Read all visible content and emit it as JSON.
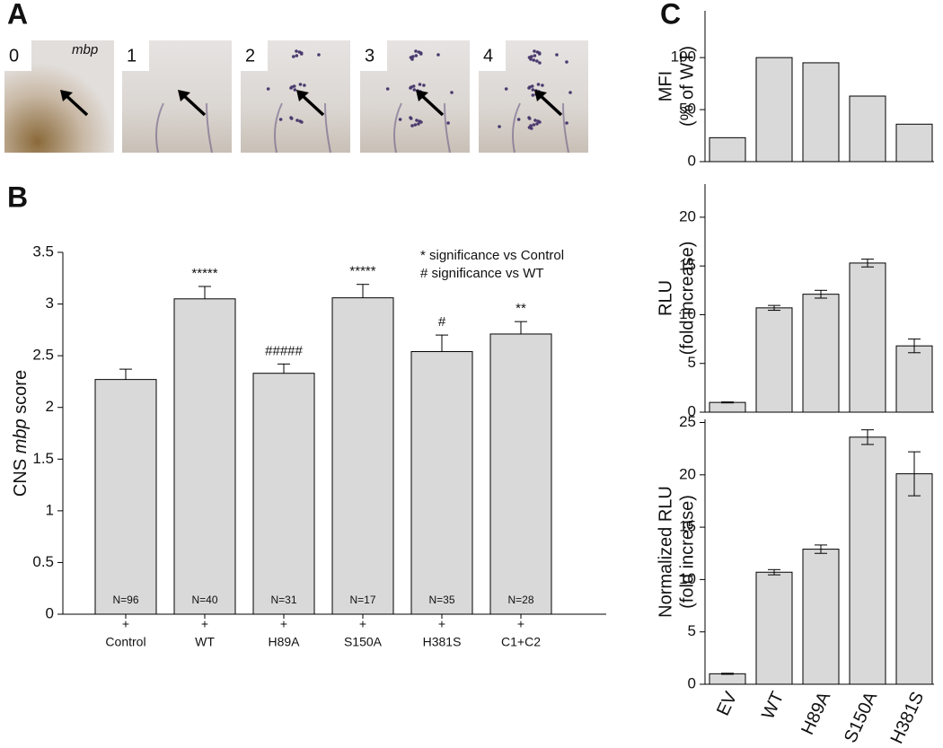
{
  "panel_a": {
    "panel_label": "A",
    "labels": [
      "0",
      "1",
      "2",
      "3",
      "4"
    ],
    "stain": "mbp"
  },
  "chart_data": [
    {
      "type": "bar",
      "panel_label": "B",
      "ylabel_parts": [
        "CNS ",
        "mbp",
        " score"
      ],
      "categories": [
        "Control",
        "WT",
        "H89A",
        "S150A",
        "H381S",
        "C1+C2"
      ],
      "category_mark": "+",
      "values": [
        2.27,
        3.05,
        2.33,
        3.06,
        2.54,
        2.71
      ],
      "errors": [
        0.1,
        0.12,
        0.09,
        0.13,
        0.16,
        0.12
      ],
      "value_labels": [
        "N=96",
        "N=40",
        "N=31",
        "N=17",
        "N=35",
        "N=28"
      ],
      "annotations": [
        null,
        "*****",
        "#####",
        "*****",
        "#",
        "**"
      ],
      "legend": [
        "* significance vs Control",
        "# significance vs WT"
      ],
      "color": "#d9d9d9",
      "ylim": [
        0,
        3.5
      ],
      "yticks": [
        0,
        0.5,
        1,
        1.5,
        2,
        2.5,
        3,
        3.5
      ]
    },
    {
      "type": "bar",
      "panel_label": "C",
      "ylabel_lines": [
        "MFI",
        "(% of WT)"
      ],
      "categories": [
        "EV",
        "WT",
        "H89A",
        "S150A",
        "H381S"
      ],
      "values": [
        23,
        100,
        95,
        63,
        36
      ],
      "color": "#d9d9d9",
      "ylim": [
        0,
        145
      ],
      "yticks": [
        0,
        50,
        100
      ]
    },
    {
      "type": "bar",
      "ylabel_lines": [
        "RLU",
        "(fold increase)"
      ],
      "categories": [
        "EV",
        "WT",
        "H89A",
        "S150A",
        "H381S"
      ],
      "values": [
        1.0,
        10.7,
        12.1,
        15.3,
        6.8
      ],
      "errors": [
        0.05,
        0.25,
        0.4,
        0.4,
        0.7
      ],
      "color": "#d9d9d9",
      "ylim": [
        0,
        23.4
      ],
      "yticks": [
        0,
        5,
        10,
        15,
        20
      ]
    },
    {
      "type": "bar",
      "ylabel_lines": [
        "Normalized RLU",
        "(fold increase)"
      ],
      "categories": [
        "EV",
        "WT",
        "H89A",
        "S150A",
        "H381S"
      ],
      "values": [
        1.0,
        10.7,
        12.9,
        23.6,
        20.1
      ],
      "errors": [
        0.05,
        0.25,
        0.4,
        0.7,
        2.1
      ],
      "color": "#d9d9d9",
      "ylim": [
        0,
        25.3
      ],
      "yticks": [
        0,
        5,
        10,
        15,
        20,
        25
      ]
    }
  ]
}
